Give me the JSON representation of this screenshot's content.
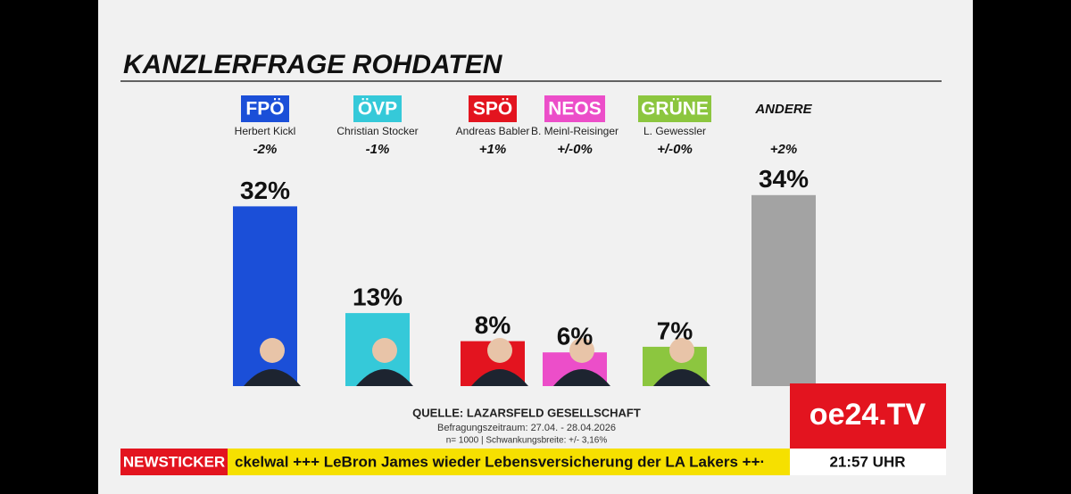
{
  "chart_data": {
    "type": "bar",
    "title": "KANZLERFRAGE ROHDATEN",
    "categories": [
      "FPÖ",
      "ÖVP",
      "SPÖ",
      "NEOS",
      "GRÜNE",
      "ANDERE"
    ],
    "candidates": [
      "Herbert Kickl",
      "Christian Stocker",
      "Andreas Babler",
      "B. Meinl-Reisinger",
      "L. Gewessler",
      null
    ],
    "changes": [
      "-2%",
      "-1%",
      "+1%",
      "+/-0%",
      "+/-0%",
      "+2%"
    ],
    "values": [
      32,
      13,
      8,
      6,
      7,
      34
    ],
    "value_labels": [
      "32%",
      "13%",
      "8%",
      "6%",
      "7%",
      "34%"
    ],
    "colors": [
      "#1b4fd8",
      "#35c9d9",
      "#e3141f",
      "#ec4ec9",
      "#8cc63f",
      "#a3a3a3"
    ],
    "source": "QUELLE: LAZARSFELD GESELLSCHAFT",
    "period": "Befragungszeitraum: 27.04. - 28.04.2026",
    "sample": "n= 1000 | Schwankungsbreite: +/- 3,16%"
  },
  "broadcast": {
    "ticker_label": "NEWSTICKER",
    "ticker_text": "ckelwal +++ LeBron James wieder Lebensversicherung der LA Lakers ++·",
    "logo": "oe24.TV",
    "time": "21:57 UHR"
  }
}
